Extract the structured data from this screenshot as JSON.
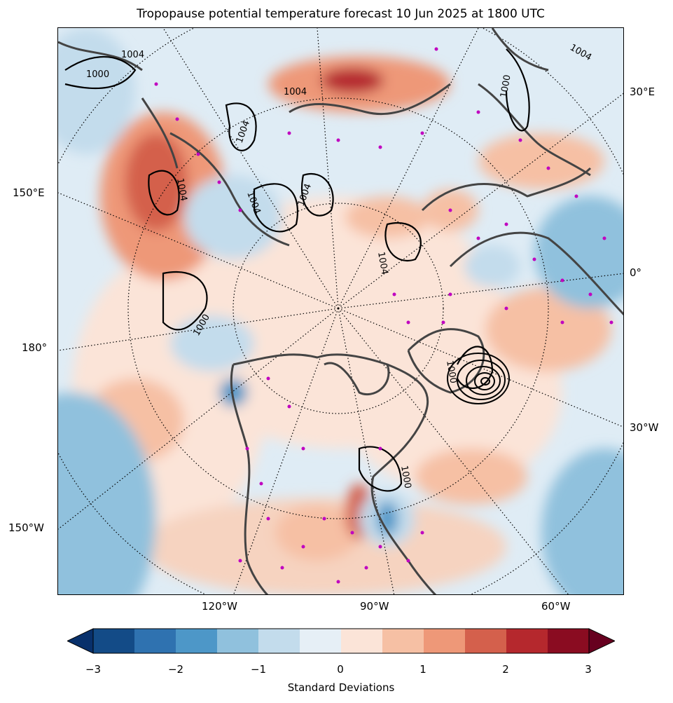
{
  "title": "Tropopause potential temperature forecast 10 Jun 2025 at 1800 UTC",
  "lon_labels": {
    "right_30e": "30°E",
    "right_0": "0°",
    "right_30w": "30°W",
    "left_150e": "150°E",
    "left_180": "180°",
    "left_150w": "150°W",
    "bottom_120w": "120°W",
    "bottom_90w": "90°W",
    "bottom_60w": "60°W"
  },
  "contour_labels": [
    "1000",
    "1004",
    "1004",
    "1004",
    "1004",
    "1004",
    "1000",
    "1004",
    "1000",
    "1004",
    "1000",
    "1000",
    "1004"
  ],
  "colorbar": {
    "label": "Standard Deviations",
    "ticks": [
      "−3",
      "−2",
      "−1",
      "0",
      "1",
      "2",
      "3"
    ],
    "colors": [
      "#08306b",
      "#134b87",
      "#2f72b0",
      "#4d97c8",
      "#90c1dd",
      "#c3dcec",
      "#e6eff6",
      "#fbe4d8",
      "#f6c0a4",
      "#ee9878",
      "#d4604c",
      "#b5282d",
      "#8a0c21",
      "#67001f"
    ]
  }
}
